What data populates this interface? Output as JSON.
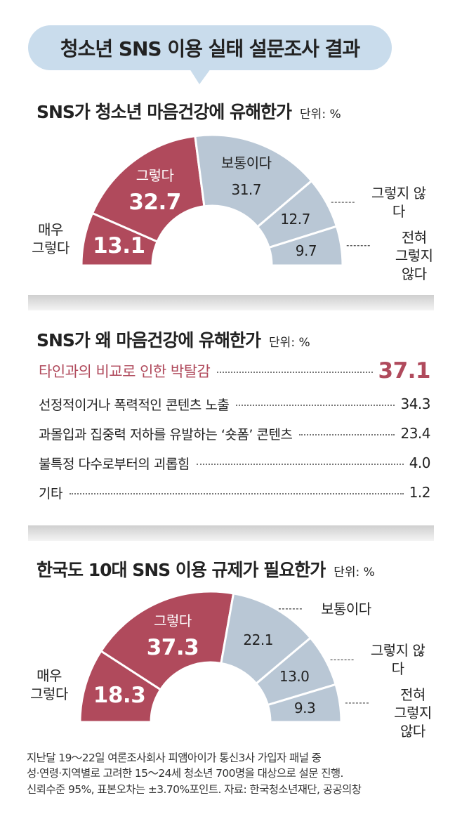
{
  "title": "청소년 SNS 이용 실태 설문조사 결과",
  "chart_data": [
    {
      "type": "donut",
      "title": "SNS가 청소년 마음건강에 유해한가",
      "unit": "단위: %",
      "categories": [
        "매우\n그렇다",
        "그렇다",
        "보통이다",
        "그렇지 않다",
        "전혀\n그렇지 않다"
      ],
      "values": [
        13.1,
        32.7,
        31.7,
        12.7,
        9.7
      ],
      "value_labels": [
        "13.1",
        "32.7",
        "31.7",
        "12.7",
        "9.7"
      ],
      "colors": [
        "#b04a5c",
        "#b04a5c",
        "#b9c7d5",
        "#b9c7d5",
        "#b9c7d5"
      ]
    },
    {
      "type": "donut",
      "title": "한국도 10대 SNS 이용 규제가 필요한가",
      "unit": "단위: %",
      "categories": [
        "매우\n그렇다",
        "그렇다",
        "보통이다",
        "그렇지 않다",
        "전혀\n그렇지 않다"
      ],
      "values": [
        18.3,
        37.3,
        22.1,
        13.0,
        9.3
      ],
      "value_labels": [
        "18.3",
        "37.3",
        "22.1",
        "13.0",
        "9.3"
      ],
      "colors": [
        "#b04a5c",
        "#b04a5c",
        "#b9c7d5",
        "#b9c7d5",
        "#b9c7d5"
      ]
    }
  ],
  "reasons": {
    "title": "SNS가 왜 마음건강에 유해한가",
    "unit": "단위: %",
    "items": [
      {
        "label": "타인과의 비교로 인한 박탈감",
        "value": "37.1"
      },
      {
        "label": "선정적이거나 폭력적인 콘텐츠 노출",
        "value": "34.3"
      },
      {
        "label": "과몰입과 집중력 저하를 유발하는 ‘숏폼’ 콘텐츠",
        "value": "23.4"
      },
      {
        "label": "불특정 다수로부터의 괴롭힘",
        "value": "4.0"
      },
      {
        "label": "기타",
        "value": "1.2"
      }
    ]
  },
  "note": [
    "지난달 19～22일 여론조사회사 피앰아이가 통신3사 가입자 패널 중",
    "성·연령·지역별로 고려한 15～24세 청소년 700명을 대상으로 설문 진행.",
    "신뢰수준 95%, 표본오차는 ±3.70%포인트.  자료: 한국청소년재단, 공공의창"
  ]
}
